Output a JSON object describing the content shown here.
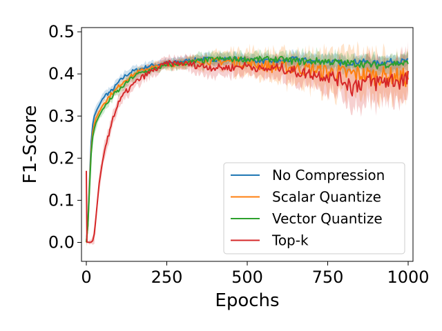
{
  "chart_data": {
    "type": "line",
    "title": "",
    "xlabel": "Epochs",
    "ylabel": "F1-Score",
    "xlim": [
      -15,
      1015
    ],
    "ylim": [
      -0.045,
      0.51
    ],
    "xticks": [
      0,
      250,
      500,
      750,
      1000
    ],
    "xtick_labels": [
      "0",
      "250",
      "500",
      "750",
      "1000"
    ],
    "yticks": [
      0.0,
      0.1,
      0.2,
      0.3,
      0.4,
      0.5
    ],
    "ytick_labels": [
      "0.0",
      "0.1",
      "0.2",
      "0.3",
      "0.4",
      "0.5"
    ],
    "grid": false,
    "legend_position": "lower-right",
    "shaded_band": true,
    "series": [
      {
        "name": "No Compression",
        "color": "#1f77b4",
        "x": [
          0,
          5,
          10,
          15,
          20,
          25,
          30,
          40,
          50,
          60,
          70,
          80,
          90,
          100,
          120,
          140,
          160,
          180,
          200,
          250,
          300,
          350,
          400,
          450,
          500,
          550,
          600,
          650,
          700,
          750,
          800,
          850,
          900,
          950,
          1000
        ],
        "y": [
          0.0,
          0.05,
          0.15,
          0.24,
          0.28,
          0.3,
          0.31,
          0.325,
          0.34,
          0.35,
          0.355,
          0.36,
          0.37,
          0.38,
          0.395,
          0.405,
          0.41,
          0.415,
          0.42,
          0.425,
          0.43,
          0.435,
          0.435,
          0.435,
          0.435,
          0.43,
          0.43,
          0.435,
          0.43,
          0.43,
          0.425,
          0.43,
          0.425,
          0.43,
          0.43
        ],
        "band": [
          0.01,
          0.02,
          0.02,
          0.02,
          0.015,
          0.015,
          0.015,
          0.01,
          0.01,
          0.01,
          0.01,
          0.01,
          0.01,
          0.01,
          0.01,
          0.01,
          0.01,
          0.01,
          0.01,
          0.01,
          0.01,
          0.01,
          0.012,
          0.012,
          0.012,
          0.012,
          0.012,
          0.015,
          0.015,
          0.015,
          0.015,
          0.015,
          0.015,
          0.015,
          0.015
        ]
      },
      {
        "name": "Scalar Quantize",
        "color": "#ff7f0e",
        "x": [
          0,
          5,
          10,
          15,
          20,
          25,
          30,
          40,
          50,
          60,
          70,
          80,
          90,
          100,
          120,
          140,
          160,
          180,
          200,
          250,
          300,
          350,
          400,
          450,
          500,
          550,
          600,
          650,
          700,
          750,
          800,
          850,
          900,
          950,
          1000
        ],
        "y": [
          0.0,
          0.04,
          0.14,
          0.22,
          0.26,
          0.28,
          0.295,
          0.31,
          0.325,
          0.335,
          0.345,
          0.355,
          0.36,
          0.37,
          0.385,
          0.395,
          0.405,
          0.41,
          0.415,
          0.42,
          0.425,
          0.43,
          0.43,
          0.43,
          0.425,
          0.42,
          0.415,
          0.415,
          0.41,
          0.405,
          0.4,
          0.4,
          0.395,
          0.395,
          0.39
        ],
        "band": [
          0.01,
          0.02,
          0.02,
          0.02,
          0.015,
          0.015,
          0.015,
          0.01,
          0.01,
          0.01,
          0.01,
          0.01,
          0.01,
          0.01,
          0.01,
          0.01,
          0.01,
          0.01,
          0.01,
          0.01,
          0.012,
          0.015,
          0.02,
          0.025,
          0.03,
          0.03,
          0.035,
          0.035,
          0.04,
          0.045,
          0.05,
          0.05,
          0.05,
          0.05,
          0.05
        ]
      },
      {
        "name": "Vector Quantize",
        "color": "#2ca02c",
        "x": [
          0,
          5,
          10,
          15,
          20,
          25,
          30,
          40,
          50,
          60,
          70,
          80,
          90,
          100,
          120,
          140,
          160,
          180,
          200,
          250,
          300,
          350,
          400,
          450,
          500,
          550,
          600,
          650,
          700,
          750,
          800,
          850,
          900,
          950,
          1000
        ],
        "y": [
          0.0,
          0.04,
          0.13,
          0.21,
          0.25,
          0.27,
          0.285,
          0.3,
          0.315,
          0.325,
          0.335,
          0.345,
          0.355,
          0.36,
          0.375,
          0.39,
          0.4,
          0.405,
          0.41,
          0.42,
          0.425,
          0.43,
          0.435,
          0.435,
          0.435,
          0.435,
          0.435,
          0.43,
          0.43,
          0.43,
          0.425,
          0.425,
          0.42,
          0.425,
          0.425
        ],
        "band": [
          0.01,
          0.02,
          0.02,
          0.02,
          0.015,
          0.015,
          0.015,
          0.01,
          0.01,
          0.01,
          0.01,
          0.01,
          0.01,
          0.01,
          0.01,
          0.01,
          0.01,
          0.01,
          0.01,
          0.01,
          0.012,
          0.015,
          0.015,
          0.015,
          0.015,
          0.015,
          0.015,
          0.02,
          0.02,
          0.02,
          0.02,
          0.02,
          0.02,
          0.02,
          0.02
        ]
      },
      {
        "name": "Top-k",
        "color": "#d62728",
        "x": [
          0,
          2,
          5,
          10,
          15,
          20,
          25,
          30,
          35,
          40,
          50,
          60,
          70,
          80,
          90,
          100,
          120,
          140,
          160,
          180,
          200,
          250,
          300,
          350,
          400,
          450,
          500,
          550,
          600,
          650,
          700,
          750,
          800,
          830,
          850,
          900,
          950,
          1000
        ],
        "y": [
          0.17,
          0.0,
          0.0,
          0.0,
          0.0,
          0.005,
          0.02,
          0.06,
          0.1,
          0.14,
          0.19,
          0.23,
          0.26,
          0.29,
          0.31,
          0.33,
          0.355,
          0.37,
          0.385,
          0.395,
          0.405,
          0.425,
          0.425,
          0.42,
          0.415,
          0.415,
          0.42,
          0.41,
          0.415,
          0.405,
          0.4,
          0.395,
          0.385,
          0.37,
          0.38,
          0.38,
          0.385,
          0.385
        ],
        "band": [
          0.0,
          0.0,
          0.0,
          0.005,
          0.005,
          0.01,
          0.02,
          0.02,
          0.02,
          0.02,
          0.02,
          0.02,
          0.02,
          0.015,
          0.015,
          0.015,
          0.015,
          0.015,
          0.015,
          0.015,
          0.015,
          0.015,
          0.015,
          0.02,
          0.02,
          0.02,
          0.02,
          0.02,
          0.025,
          0.03,
          0.03,
          0.035,
          0.04,
          0.06,
          0.05,
          0.05,
          0.05,
          0.055
        ]
      }
    ]
  }
}
